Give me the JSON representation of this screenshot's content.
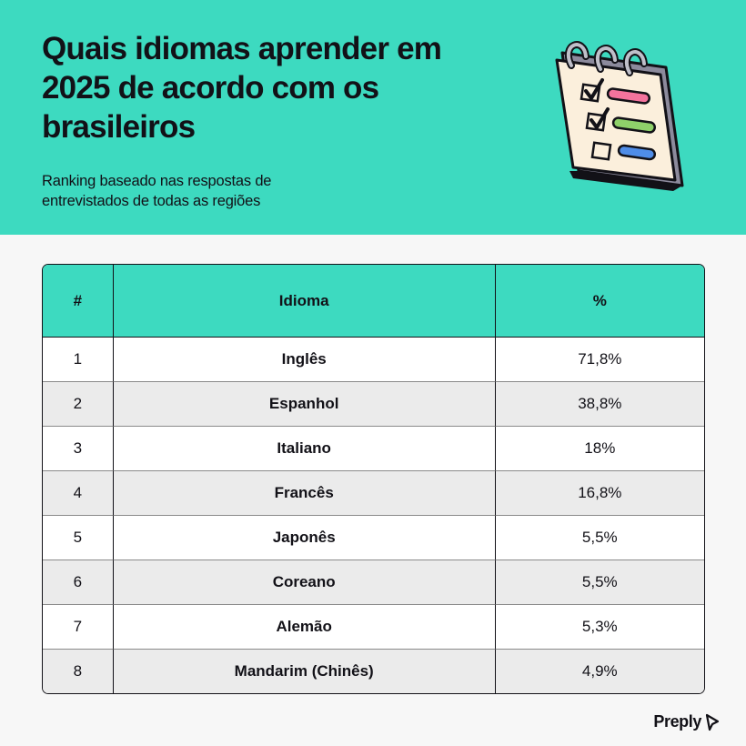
{
  "title": "Quais idiomas aprender em 2025 de acordo com os brasileiros",
  "subtitle": "Ranking baseado nas respostas de entrevistados de todas as regiões",
  "brand": "Preply",
  "colors": {
    "accent": "#3ddac0",
    "text": "#121117",
    "row_alt": "#ebebeb"
  },
  "illustration": {
    "icon": "checklist-notepad-icon"
  },
  "chart_data": {
    "type": "table",
    "columns": [
      "#",
      "Idioma",
      "%"
    ],
    "rows": [
      {
        "rank": "1",
        "language": "Inglês",
        "percent": "71,8%"
      },
      {
        "rank": "2",
        "language": "Espanhol",
        "percent": "38,8%"
      },
      {
        "rank": "3",
        "language": "Italiano",
        "percent": "18%"
      },
      {
        "rank": "4",
        "language": "Francês",
        "percent": "16,8%"
      },
      {
        "rank": "5",
        "language": "Japonês",
        "percent": "5,5%"
      },
      {
        "rank": "6",
        "language": "Coreano",
        "percent": "5,5%"
      },
      {
        "rank": "7",
        "language": "Alemão",
        "percent": "5,3%"
      },
      {
        "rank": "8",
        "language": "Mandarim (Chinês)",
        "percent": "4,9%"
      }
    ]
  }
}
